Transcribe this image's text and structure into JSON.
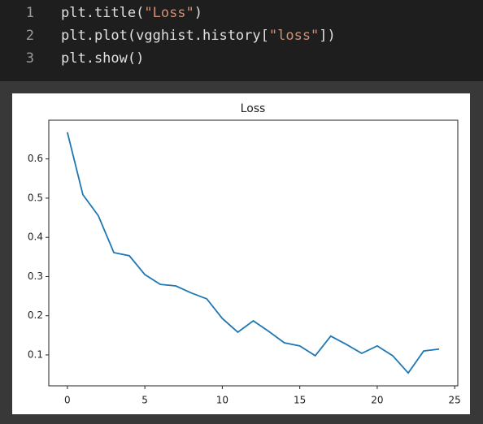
{
  "code": {
    "lines": [
      {
        "number": 1,
        "parts": [
          "plt.title(",
          "\"Loss\"",
          ")"
        ]
      },
      {
        "number": 2,
        "parts": [
          "plt.plot(vgghist.history[",
          "\"loss\"",
          "])"
        ]
      },
      {
        "number": 3,
        "parts": [
          "plt.show()"
        ]
      }
    ]
  },
  "chart_data": {
    "type": "line",
    "title": "Loss",
    "x": [
      0,
      1,
      2,
      3,
      4,
      5,
      6,
      7,
      8,
      9,
      10,
      11,
      12,
      13,
      14,
      15,
      16,
      17,
      18,
      19,
      20,
      21,
      22,
      23,
      24
    ],
    "series": [
      {
        "color": "#1f77b4",
        "values": [
          0.668,
          0.509,
          0.455,
          0.361,
          0.353,
          0.305,
          0.28,
          0.276,
          0.258,
          0.243,
          0.193,
          0.158,
          0.187,
          0.16,
          0.131,
          0.123,
          0.098,
          0.148,
          0.127,
          0.104,
          0.123,
          0.098,
          0.054,
          0.11,
          0.115
        ]
      }
    ],
    "xlim": [
      -1.2,
      25.2
    ],
    "xticks": [
      0,
      5,
      10,
      15,
      20,
      25
    ],
    "ylim": [
      0.0212,
      0.6988
    ],
    "yticks": [
      0.1,
      0.2,
      0.3,
      0.4,
      0.5,
      0.6
    ]
  }
}
